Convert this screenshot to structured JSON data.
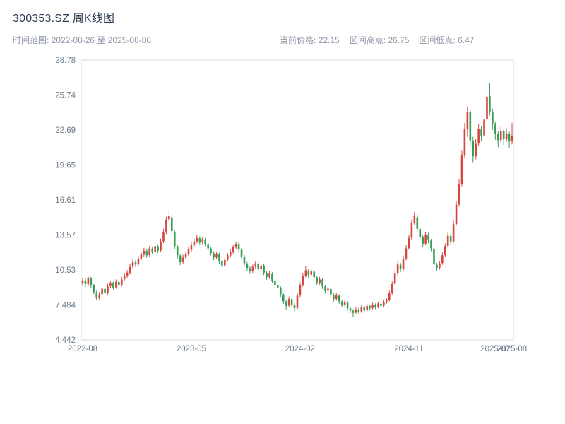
{
  "header": {
    "title": "300353.SZ 周K线图",
    "range_label": "时间范围: 2022-08-26 至 2025-08-08",
    "stats": {
      "current": "当前价格: 22.15",
      "high": "区间高点: 26.75",
      "low": "区间低点: 6.47"
    }
  },
  "colors": {
    "up": "#d6453e",
    "down": "#379d59",
    "axis": "#d6dce3",
    "tick_text": "#6e7c8c",
    "title_text": "#2f3c52",
    "subtitle_text": "#8d97a6",
    "background": "#ffffff"
  },
  "chart_data": {
    "type": "candlestick",
    "title": "300353.SZ 周K线图",
    "interval": "weekly",
    "date_range": {
      "start": "2022-08-26",
      "end": "2025-08-08"
    },
    "current_price": 22.15,
    "range_high": 26.75,
    "range_low": 6.47,
    "ylim": [
      4.442,
      28.78
    ],
    "grid": false,
    "y_ticks": [
      {
        "value": 4.442,
        "label": "4.442"
      },
      {
        "value": 7.484,
        "label": "7.484"
      },
      {
        "value": 10.53,
        "label": "10.53"
      },
      {
        "value": 13.57,
        "label": "13.57"
      },
      {
        "value": 16.61,
        "label": "16.61"
      },
      {
        "value": 19.65,
        "label": "19.65"
      },
      {
        "value": 22.69,
        "label": "22.69"
      },
      {
        "value": 25.74,
        "label": "25.74"
      },
      {
        "value": 28.78,
        "label": "28.78"
      }
    ],
    "x_ticks": [
      {
        "index": 0,
        "label": "2022-08"
      },
      {
        "index": 39,
        "label": "2023-05"
      },
      {
        "index": 78,
        "label": "2024-02"
      },
      {
        "index": 117,
        "label": "2024-11"
      },
      {
        "index": 148,
        "label": "2025-07"
      },
      {
        "index": 154,
        "label": "2025-08"
      }
    ],
    "ohlc": [
      [
        9.4,
        9.85,
        9.15,
        9.6
      ],
      [
        9.62,
        9.8,
        9.05,
        9.3
      ],
      [
        9.28,
        10.02,
        9.1,
        9.8
      ],
      [
        9.78,
        9.92,
        8.98,
        9.2
      ],
      [
        9.18,
        9.3,
        8.42,
        8.6
      ],
      [
        8.58,
        8.72,
        7.88,
        8.1
      ],
      [
        8.12,
        8.62,
        7.95,
        8.4
      ],
      [
        8.42,
        9.1,
        8.28,
        8.9
      ],
      [
        8.88,
        9.02,
        8.3,
        8.5
      ],
      [
        8.52,
        9.32,
        8.4,
        9.1
      ],
      [
        9.12,
        9.6,
        8.95,
        9.4
      ],
      [
        9.38,
        9.52,
        8.82,
        9.0
      ],
      [
        9.02,
        9.7,
        8.9,
        9.5
      ],
      [
        9.48,
        9.66,
        9.02,
        9.2
      ],
      [
        9.22,
        9.92,
        9.08,
        9.7
      ],
      [
        9.72,
        10.22,
        9.58,
        10.0
      ],
      [
        10.02,
        10.52,
        9.86,
        10.3
      ],
      [
        10.28,
        11.02,
        10.12,
        10.8
      ],
      [
        10.82,
        11.45,
        10.65,
        11.2
      ],
      [
        11.18,
        11.38,
        10.78,
        11.0
      ],
      [
        11.02,
        11.72,
        10.88,
        11.5
      ],
      [
        11.52,
        12.12,
        11.35,
        11.9
      ],
      [
        11.88,
        12.45,
        11.7,
        12.2
      ],
      [
        12.18,
        12.35,
        11.58,
        11.8
      ],
      [
        11.82,
        12.62,
        11.66,
        12.4
      ],
      [
        12.38,
        12.55,
        11.88,
        12.1
      ],
      [
        12.12,
        12.85,
        11.98,
        12.6
      ],
      [
        12.58,
        12.76,
        12.0,
        12.2
      ],
      [
        12.22,
        13.25,
        12.1,
        13.0
      ],
      [
        13.02,
        14.1,
        12.85,
        13.8
      ],
      [
        13.82,
        15.15,
        13.65,
        14.9
      ],
      [
        14.92,
        15.62,
        14.6,
        15.2
      ],
      [
        15.1,
        15.35,
        13.6,
        13.9
      ],
      [
        13.85,
        14.0,
        12.35,
        12.6
      ],
      [
        12.58,
        12.72,
        11.52,
        11.8
      ],
      [
        11.78,
        11.92,
        10.95,
        11.2
      ],
      [
        11.22,
        11.85,
        11.05,
        11.6
      ],
      [
        11.62,
        12.12,
        11.45,
        11.9
      ],
      [
        11.92,
        12.52,
        11.75,
        12.3
      ],
      [
        12.28,
        12.95,
        12.12,
        12.7
      ],
      [
        12.72,
        13.25,
        12.55,
        13.0
      ],
      [
        13.02,
        13.55,
        12.85,
        13.3
      ],
      [
        13.28,
        13.45,
        12.68,
        12.9
      ],
      [
        12.92,
        13.42,
        12.75,
        13.2
      ],
      [
        13.18,
        13.32,
        12.58,
        12.8
      ],
      [
        12.78,
        12.92,
        12.18,
        12.4
      ],
      [
        12.38,
        12.55,
        11.8,
        12.0
      ],
      [
        11.98,
        12.15,
        11.38,
        11.6
      ],
      [
        11.62,
        12.1,
        11.45,
        11.9
      ],
      [
        11.88,
        12.02,
        11.08,
        11.3
      ],
      [
        11.28,
        11.42,
        10.68,
        10.9
      ],
      [
        10.92,
        11.6,
        10.75,
        11.4
      ],
      [
        11.42,
        12.0,
        11.25,
        11.8
      ],
      [
        11.78,
        12.3,
        11.6,
        12.1
      ],
      [
        12.12,
        12.72,
        11.95,
        12.5
      ],
      [
        12.48,
        13.0,
        12.3,
        12.8
      ],
      [
        12.78,
        12.92,
        12.08,
        12.3
      ],
      [
        12.28,
        12.42,
        11.48,
        11.7
      ],
      [
        11.68,
        11.82,
        10.88,
        11.1
      ],
      [
        11.08,
        11.22,
        10.48,
        10.7
      ],
      [
        10.68,
        10.85,
        10.18,
        10.4
      ],
      [
        10.42,
        11.0,
        10.25,
        10.8
      ],
      [
        10.82,
        11.3,
        10.65,
        11.1
      ],
      [
        11.08,
        11.22,
        10.38,
        10.6
      ],
      [
        10.62,
        11.1,
        10.45,
        10.9
      ],
      [
        10.88,
        11.02,
        10.08,
        10.3
      ],
      [
        10.28,
        10.42,
        9.68,
        9.9
      ],
      [
        9.92,
        10.4,
        9.75,
        10.2
      ],
      [
        10.18,
        10.32,
        9.38,
        9.6
      ],
      [
        9.58,
        9.72,
        8.98,
        9.2
      ],
      [
        9.18,
        9.35,
        8.78,
        9.0
      ],
      [
        8.98,
        9.1,
        8.18,
        8.4
      ],
      [
        8.38,
        8.52,
        7.58,
        7.8
      ],
      [
        7.78,
        7.92,
        7.1,
        7.4
      ],
      [
        7.42,
        8.22,
        7.28,
        8.0
      ],
      [
        7.98,
        8.12,
        7.25,
        7.5
      ],
      [
        7.48,
        7.62,
        6.95,
        7.2
      ],
      [
        7.22,
        8.55,
        7.1,
        8.3
      ],
      [
        8.32,
        9.45,
        8.18,
        9.2
      ],
      [
        9.22,
        10.25,
        9.08,
        10.0
      ],
      [
        10.02,
        10.85,
        9.88,
        10.5
      ],
      [
        10.48,
        10.62,
        9.85,
        10.1
      ],
      [
        10.12,
        10.65,
        9.95,
        10.4
      ],
      [
        10.38,
        10.52,
        9.68,
        9.9
      ],
      [
        9.88,
        10.02,
        9.18,
        9.4
      ],
      [
        9.42,
        9.92,
        9.25,
        9.7
      ],
      [
        9.68,
        9.82,
        8.88,
        9.1
      ],
      [
        9.08,
        9.22,
        8.48,
        8.7
      ],
      [
        8.72,
        9.1,
        8.55,
        8.9
      ],
      [
        8.88,
        9.02,
        8.18,
        8.4
      ],
      [
        8.38,
        8.52,
        7.78,
        8.0
      ],
      [
        8.02,
        8.5,
        7.85,
        8.3
      ],
      [
        8.28,
        8.42,
        7.58,
        7.8
      ],
      [
        7.78,
        7.92,
        7.28,
        7.5
      ],
      [
        7.52,
        7.9,
        7.35,
        7.7
      ],
      [
        7.68,
        7.82,
        6.98,
        7.2
      ],
      [
        7.18,
        7.32,
        6.78,
        7.0
      ],
      [
        6.98,
        7.12,
        6.47,
        6.8
      ],
      [
        6.82,
        7.28,
        6.68,
        7.1
      ],
      [
        7.08,
        7.22,
        6.7,
        6.9
      ],
      [
        6.92,
        7.48,
        6.8,
        7.3
      ],
      [
        7.28,
        7.42,
        6.82,
        7.0
      ],
      [
        7.02,
        7.58,
        6.9,
        7.4
      ],
      [
        7.38,
        7.52,
        7.02,
        7.2
      ],
      [
        7.22,
        7.68,
        7.1,
        7.5
      ],
      [
        7.48,
        7.62,
        7.12,
        7.3
      ],
      [
        7.32,
        7.78,
        7.2,
        7.6
      ],
      [
        7.58,
        7.72,
        7.22,
        7.4
      ],
      [
        7.42,
        7.88,
        7.3,
        7.7
      ],
      [
        7.72,
        8.1,
        7.58,
        7.9
      ],
      [
        7.92,
        8.72,
        7.8,
        8.5
      ],
      [
        8.52,
        9.55,
        8.4,
        9.3
      ],
      [
        9.32,
        10.48,
        9.2,
        10.2
      ],
      [
        10.22,
        11.3,
        10.08,
        11.0
      ],
      [
        10.98,
        11.15,
        10.32,
        10.6
      ],
      [
        10.62,
        11.78,
        10.48,
        11.5
      ],
      [
        11.52,
        12.68,
        11.38,
        12.4
      ],
      [
        12.42,
        13.6,
        12.28,
        13.3
      ],
      [
        13.32,
        14.92,
        13.18,
        14.6
      ],
      [
        14.62,
        15.58,
        14.4,
        15.2
      ],
      [
        15.1,
        15.35,
        13.82,
        14.1
      ],
      [
        14.08,
        14.25,
        13.12,
        13.4
      ],
      [
        13.38,
        13.55,
        12.55,
        12.8
      ],
      [
        12.82,
        13.85,
        12.68,
        13.6
      ],
      [
        13.58,
        13.75,
        12.85,
        13.1
      ],
      [
        13.08,
        13.22,
        12.15,
        12.4
      ],
      [
        12.38,
        12.52,
        10.78,
        11.0
      ],
      [
        10.98,
        11.15,
        10.45,
        10.7
      ],
      [
        10.72,
        11.32,
        10.55,
        11.1
      ],
      [
        11.12,
        12.05,
        10.98,
        11.8
      ],
      [
        11.82,
        12.85,
        11.68,
        12.6
      ],
      [
        12.62,
        13.78,
        12.48,
        13.5
      ],
      [
        13.48,
        13.65,
        12.72,
        13.0
      ],
      [
        13.02,
        14.8,
        12.88,
        14.5
      ],
      [
        14.52,
        16.55,
        14.38,
        16.2
      ],
      [
        16.22,
        18.4,
        16.05,
        18.0
      ],
      [
        18.02,
        20.95,
        17.8,
        20.5
      ],
      [
        20.52,
        23.3,
        20.3,
        22.8
      ],
      [
        22.82,
        24.75,
        22.1,
        24.3
      ],
      [
        24.28,
        24.5,
        21.3,
        21.8
      ],
      [
        21.78,
        22.1,
        19.9,
        20.4
      ],
      [
        20.42,
        21.95,
        20.15,
        21.5
      ],
      [
        21.52,
        23.2,
        21.3,
        22.8
      ],
      [
        22.78,
        23.05,
        21.7,
        22.2
      ],
      [
        22.22,
        24.05,
        22.0,
        23.6
      ],
      [
        23.62,
        25.98,
        23.4,
        25.6
      ],
      [
        25.62,
        26.75,
        23.95,
        24.3
      ],
      [
        24.28,
        24.55,
        22.7,
        23.2
      ],
      [
        23.18,
        23.4,
        21.85,
        22.4
      ],
      [
        22.38,
        22.6,
        21.2,
        21.8
      ],
      [
        21.82,
        23.0,
        21.55,
        22.6
      ],
      [
        22.58,
        22.8,
        21.4,
        21.9
      ],
      [
        21.92,
        22.85,
        21.65,
        22.4
      ],
      [
        22.38,
        22.55,
        21.15,
        21.7
      ],
      [
        21.72,
        23.3,
        21.45,
        22.15
      ]
    ]
  }
}
